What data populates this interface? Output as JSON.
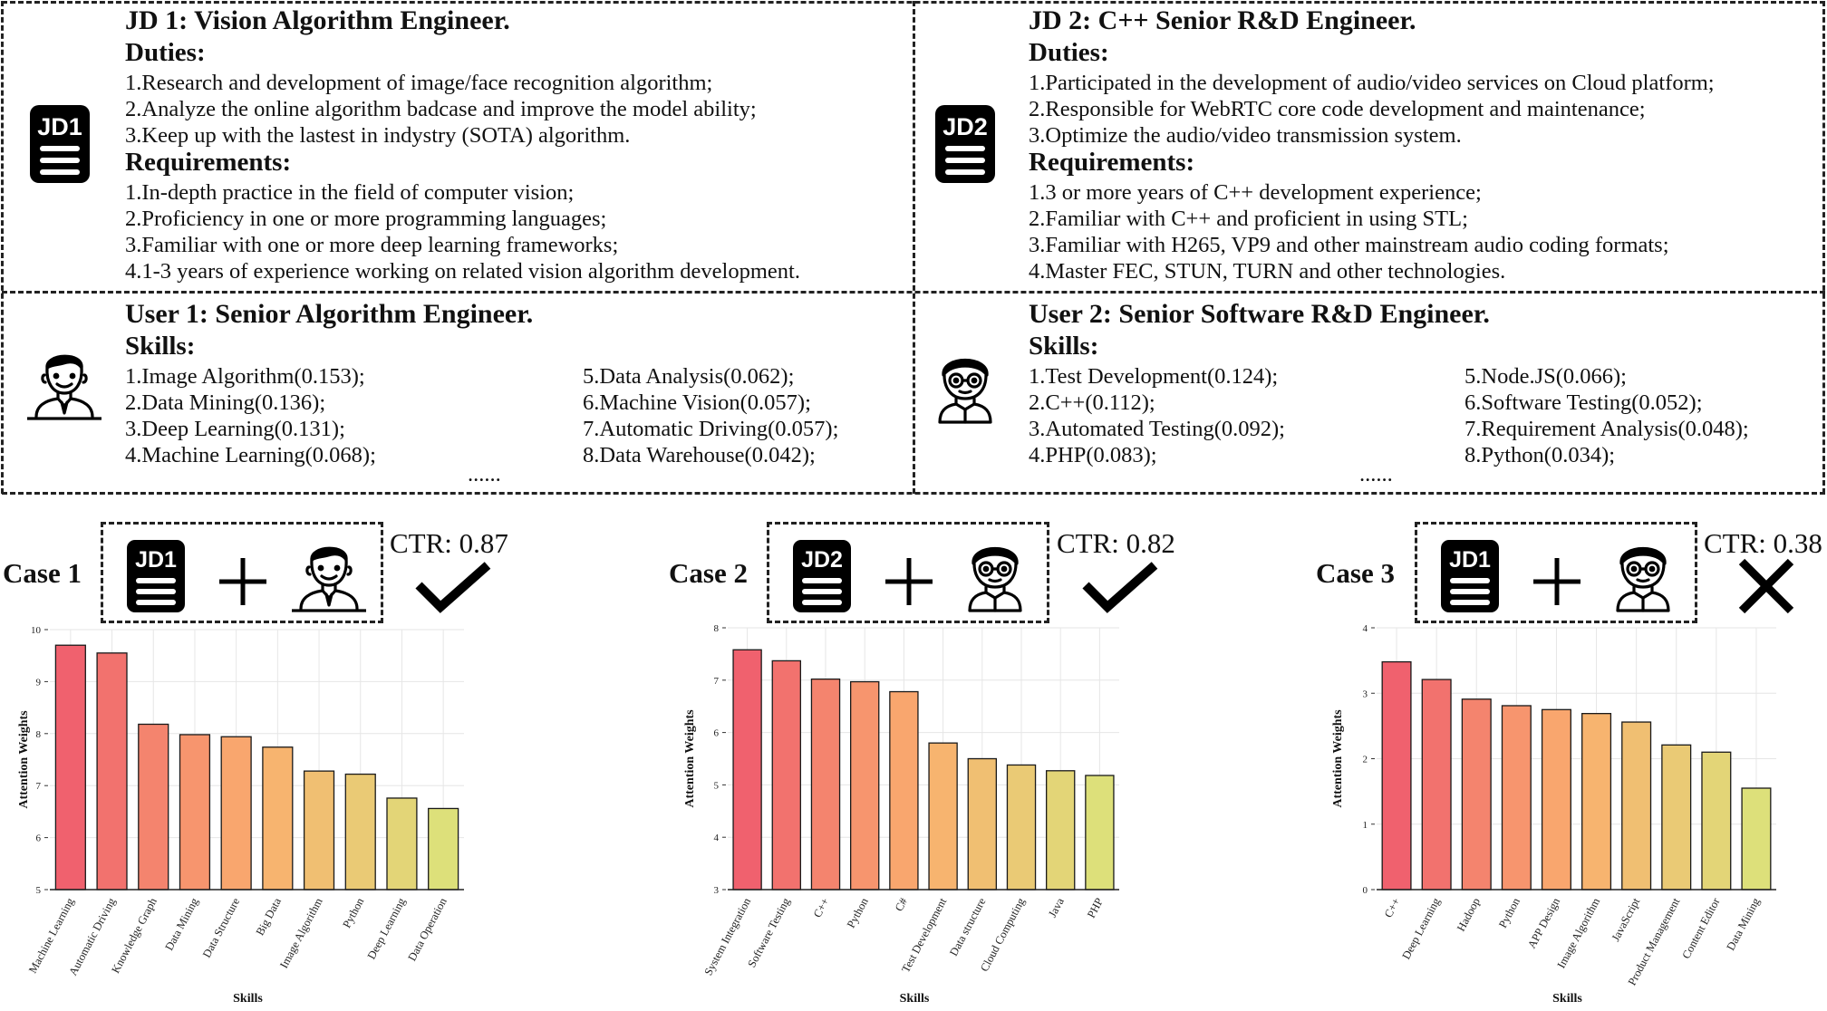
{
  "jd1": {
    "icon_label": "JD1",
    "title": "JD 1: Vision Algorithm Engineer.",
    "duties_heading": "Duties:",
    "duties": [
      "1.Research and development of image/face recognition algorithm;",
      "2.Analyze the online algorithm badcase and improve the model ability;",
      "3.Keep up with the lastest in indystry (SOTA) algorithm."
    ],
    "requirements_heading": "Requirements:",
    "requirements": [
      "1.In-depth practice in the field of computer vision;",
      "2.Proficiency in one or more programming languages;",
      "3.Familiar with one or more deep learning frameworks;",
      "4.1-3 years of experience working on related vision algorithm development."
    ]
  },
  "jd2": {
    "icon_label": "JD2",
    "title": "JD 2: C++ Senior R&D Engineer.",
    "duties_heading": "Duties:",
    "duties": [
      "1.Participated in the development of audio/video services on Cloud platform;",
      "2.Responsible for WebRTC core code development and maintenance;",
      "3.Optimize the audio/video transmission system."
    ],
    "requirements_heading": "Requirements:",
    "requirements": [
      "1.3 or more years of C++ development experience;",
      "2.Familiar with C++ and proficient in using STL;",
      "3.Familiar with H265, VP9 and other mainstream audio coding formats;",
      "4.Master FEC, STUN, TURN and other technologies."
    ]
  },
  "user1": {
    "title": "User 1: Senior Algorithm Engineer.",
    "skills_heading": "Skills:",
    "skills_left": [
      "1.Image Algorithm(0.153);",
      "2.Data Mining(0.136);",
      "3.Deep Learning(0.131);",
      "4.Machine Learning(0.068);"
    ],
    "skills_right": [
      "5.Data Analysis(0.062);",
      "6.Machine Vision(0.057);",
      "7.Automatic Driving(0.057);",
      "8.Data Warehouse(0.042);"
    ],
    "ellipsis": "......"
  },
  "user2": {
    "title": "User 2: Senior Software R&D Engineer.",
    "skills_heading": "Skills:",
    "skills_left": [
      "1.Test Development(0.124);",
      "2.C++(0.112);",
      "3.Automated Testing(0.092);",
      "4.PHP(0.083);"
    ],
    "skills_right": [
      "5.Node.JS(0.066);",
      "6.Software Testing(0.052);",
      "7.Requirement Analysis(0.048);",
      "8.Python(0.034);"
    ],
    "ellipsis": "......"
  },
  "cases": [
    {
      "label": "Case 1",
      "jd_icon": "JD1",
      "plus": "+",
      "user_icon": "user-1-avatar-icon",
      "ctr": "CTR: 0.87",
      "result_icon": "check-icon"
    },
    {
      "label": "Case 2",
      "jd_icon": "JD2",
      "plus": "+",
      "user_icon": "user-2-avatar-icon",
      "ctr": "CTR: 0.82",
      "result_icon": "check-icon"
    },
    {
      "label": "Case 3",
      "jd_icon": "JD1",
      "plus": "+",
      "user_icon": "user-2-avatar-icon",
      "ctr": "CTR: 0.38",
      "result_icon": "cross-icon"
    }
  ],
  "colors": {
    "bar_gradient_start": "#f0616e",
    "bar_gradient_end": "#dde07a"
  },
  "chart_data": [
    {
      "type": "bar",
      "xlabel": "Skills",
      "ylabel": "Attention Weights",
      "ylim": [
        5,
        10
      ],
      "yticks": [
        5,
        6,
        7,
        8,
        9,
        10
      ],
      "grid": true,
      "categories": [
        "Machine Learning",
        "Automatic Driving",
        "Knowledge Graph",
        "Data Mining",
        "Data Structure",
        "Big Data",
        "Image Algorithm",
        "Python",
        "Deep Learning",
        "Data Operation"
      ],
      "values": [
        9.7,
        9.55,
        8.18,
        7.98,
        7.94,
        7.74,
        7.28,
        7.22,
        6.76,
        6.56
      ]
    },
    {
      "type": "bar",
      "xlabel": "Skills",
      "ylabel": "Attention Weights",
      "ylim": [
        3,
        8
      ],
      "yticks": [
        3,
        4,
        5,
        6,
        7,
        8
      ],
      "grid": true,
      "categories": [
        "System Integration",
        "Software Testing",
        "C++",
        "Python",
        "C#",
        "Test Development",
        "Data structure",
        "Cloud Computing",
        "Java",
        "PHP"
      ],
      "values": [
        7.58,
        7.37,
        7.02,
        6.97,
        6.78,
        5.8,
        5.5,
        5.38,
        5.27,
        5.18
      ]
    },
    {
      "type": "bar",
      "xlabel": "Skills",
      "ylabel": "Attention Weights",
      "ylim": [
        0,
        4
      ],
      "yticks": [
        0,
        1,
        2,
        3,
        4
      ],
      "grid": true,
      "categories": [
        "C++",
        "Deep Learning",
        "Hadoop",
        "Python",
        "APP Design",
        "Image Algorithm",
        "JavaScript",
        "Product Management",
        "Content Editor",
        "Data Mining"
      ],
      "values": [
        3.48,
        3.21,
        2.91,
        2.81,
        2.75,
        2.69,
        2.56,
        2.21,
        2.1,
        1.55
      ]
    }
  ]
}
